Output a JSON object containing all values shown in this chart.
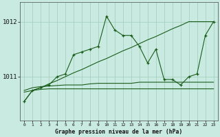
{
  "title": "Graphe pression niveau de la mer (hPa)",
  "bg_color": "#c8eae0",
  "grid_color": "#a0ccbc",
  "line_color": "#1a5c1a",
  "bottom_bar_color": "#2a6e2a",
  "x_labels": [
    "0",
    "1",
    "2",
    "3",
    "4",
    "5",
    "6",
    "7",
    "8",
    "9",
    "10",
    "11",
    "12",
    "13",
    "14",
    "15",
    "16",
    "17",
    "18",
    "19",
    "20",
    "21",
    "22",
    "23"
  ],
  "ylim": [
    1010.2,
    1012.35
  ],
  "yticks": [
    1011.0,
    1012.0
  ],
  "series_main": [
    1010.55,
    1010.75,
    1010.8,
    1010.85,
    1011.0,
    1011.05,
    1011.4,
    1011.45,
    1011.5,
    1011.55,
    1012.1,
    1011.85,
    1011.75,
    1011.75,
    1011.55,
    1011.25,
    1011.5,
    1010.95,
    1010.95,
    1010.85,
    1011.0,
    1011.05,
    1011.75,
    1012.0
  ],
  "series_diag": [
    1010.55,
    1010.75,
    1010.8,
    1010.87,
    1010.93,
    1011.0,
    1011.07,
    1011.13,
    1011.2,
    1011.27,
    1011.33,
    1011.4,
    1011.47,
    1011.53,
    1011.6,
    1011.67,
    1011.73,
    1011.8,
    1011.87,
    1011.93,
    1012.0,
    1012.0,
    1012.0,
    1012.0
  ],
  "series_flat1": [
    1010.75,
    1010.8,
    1010.82,
    1010.83,
    1010.84,
    1010.85,
    1010.85,
    1010.85,
    1010.87,
    1010.88,
    1010.88,
    1010.88,
    1010.88,
    1010.88,
    1010.9,
    1010.9,
    1010.9,
    1010.9,
    1010.9,
    1010.9,
    1010.9,
    1010.9,
    1010.9,
    1010.9
  ],
  "series_flat2": [
    1010.72,
    1010.75,
    1010.77,
    1010.78,
    1010.78,
    1010.78,
    1010.78,
    1010.78,
    1010.78,
    1010.78,
    1010.78,
    1010.78,
    1010.78,
    1010.78,
    1010.78,
    1010.78,
    1010.78,
    1010.78,
    1010.78,
    1010.78,
    1010.78,
    1010.78,
    1010.78,
    1010.78
  ]
}
